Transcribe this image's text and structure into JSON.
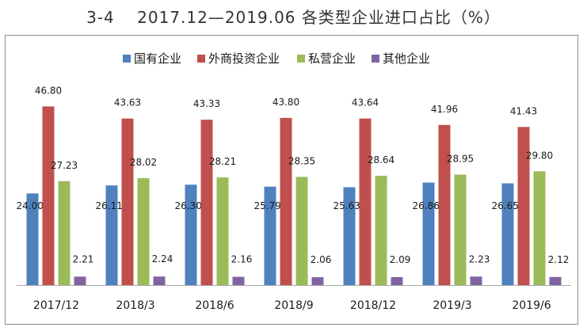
{
  "page_title": "3-4　 2017.12—2019.06 各类型企业进口占比（%）",
  "colors": {
    "国有企业": "#4F81BD",
    "外商投资企业": "#C0504D",
    "私营企业": "#9BBB59",
    "其他企业": "#8064A2"
  },
  "chart_data": {
    "type": "bar",
    "title": "",
    "categories": [
      "2017/12",
      "2018/3",
      "2018/6",
      "2018/9",
      "2018/12",
      "2019/3",
      "2019/6"
    ],
    "series": [
      {
        "name": "国有企业",
        "values": [
          24.0,
          26.11,
          26.3,
          25.79,
          25.63,
          26.86,
          26.65
        ]
      },
      {
        "name": "外商投资企业",
        "values": [
          46.8,
          43.63,
          43.33,
          43.8,
          43.64,
          41.96,
          41.43
        ]
      },
      {
        "name": "私营企业",
        "values": [
          27.23,
          28.02,
          28.21,
          28.35,
          28.64,
          28.95,
          29.8
        ]
      },
      {
        "name": "其他企业",
        "values": [
          2.21,
          2.24,
          2.16,
          2.06,
          2.09,
          2.23,
          2.12
        ]
      }
    ],
    "value_labels": [
      [
        "24.00",
        "26.11",
        "26.30",
        "25.79",
        "25.63",
        "26.86",
        "26.65"
      ],
      [
        "46.80",
        "43.63",
        "43.33",
        "43.80",
        "43.64",
        "41.96",
        "41.43"
      ],
      [
        "27.23",
        "28.02",
        "28.21",
        "28.35",
        "28.64",
        "28.95",
        "29.80"
      ],
      [
        "2.21",
        "2.24",
        "2.16",
        "2.06",
        "2.09",
        "2.23",
        "2.12"
      ]
    ],
    "ylim": [
      0,
      50
    ],
    "xlabel": "",
    "ylabel": "",
    "legend_position": "top-center",
    "grid": false
  }
}
